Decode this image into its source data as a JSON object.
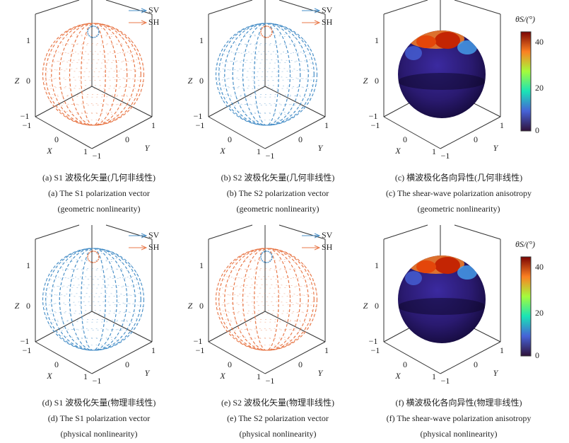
{
  "panels": [
    {
      "legend": [
        "SV",
        "SH"
      ],
      "z_label": "Z",
      "x_label": "X",
      "y_label": "Y",
      "z_ticks": [
        "1",
        "0",
        "−1"
      ],
      "x_ticks": [
        "−1",
        "0",
        "1"
      ],
      "y_ticks": [
        "−1",
        "0",
        "1"
      ],
      "caption_cn": "(a) S1 波极化矢量(几何非线性)",
      "caption_en": "(a) The S1 polarization vector",
      "caption_en2": "(geometric nonlinearity)"
    },
    {
      "legend": [
        "SV",
        "SH"
      ],
      "z_label": "Z",
      "x_label": "X",
      "y_label": "Y",
      "z_ticks": [
        "1",
        "0",
        "−1"
      ],
      "x_ticks": [
        "−1",
        "0",
        "1"
      ],
      "y_ticks": [
        "−1",
        "0",
        "1"
      ],
      "caption_cn": "(b) S2 波极化矢量(几何非线性)",
      "caption_en": "(b) The S2 polarization vector",
      "caption_en2": "(geometric nonlinearity)"
    },
    {
      "colorbar_label": "θS/(°)",
      "colorbar_ticks": [
        "40",
        "20",
        "0"
      ],
      "z_label": "Z",
      "x_label": "X",
      "y_label": "Y",
      "z_ticks": [
        "1",
        "0",
        "−1"
      ],
      "x_ticks": [
        "−1",
        "0",
        "1"
      ],
      "y_ticks": [
        "−1",
        "0",
        "1"
      ],
      "caption_cn": "(c) 横波极化各向异性(几何非线性)",
      "caption_en": "(c) The shear-wave polarization anisotropy",
      "caption_en2": "(geometric nonlinearity)"
    },
    {
      "legend": [
        "SV",
        "SH"
      ],
      "z_label": "Z",
      "x_label": "X",
      "y_label": "Y",
      "z_ticks": [
        "1",
        "0",
        "−1"
      ],
      "x_ticks": [
        "−1",
        "0",
        "1"
      ],
      "y_ticks": [
        "−1",
        "0",
        "1"
      ],
      "caption_cn": "(d) S1 波极化矢量(物理非线性)",
      "caption_en": "(d) The S1 polarization vector",
      "caption_en2": "(physical nonlinearity)"
    },
    {
      "legend": [
        "SV",
        "SH"
      ],
      "z_label": "Z",
      "x_label": "X",
      "y_label": "Y",
      "z_ticks": [
        "1",
        "0",
        "−1"
      ],
      "x_ticks": [
        "−1",
        "0",
        "1"
      ],
      "y_ticks": [
        "−1",
        "0",
        "1"
      ],
      "caption_cn": "(e) S2 波极化矢量(物理非线性)",
      "caption_en": "(e) The S2 polarization vector",
      "caption_en2": "(physical nonlinearity)"
    },
    {
      "colorbar_label": "θS/(°)",
      "colorbar_ticks": [
        "40",
        "20",
        "0"
      ],
      "z_label": "Z",
      "x_label": "X",
      "y_label": "Y",
      "z_ticks": [
        "1",
        "0",
        "−1"
      ],
      "x_ticks": [
        "−1",
        "0",
        "1"
      ],
      "y_ticks": [
        "−1",
        "0",
        "1"
      ],
      "caption_cn": "(f) 横波极化各向异性(物理非线性)",
      "caption_en": "(f) The shear-wave polarization anisotropy",
      "caption_en2": "(physical nonlinearity)"
    }
  ]
}
